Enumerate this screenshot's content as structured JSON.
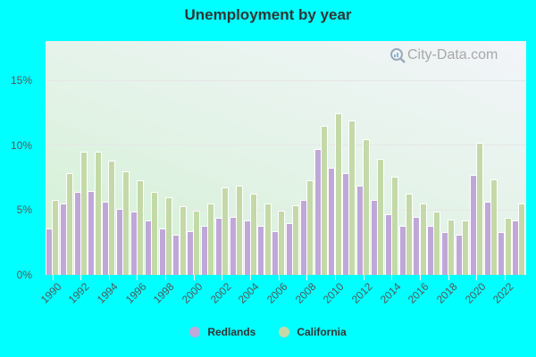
{
  "title": "Unemployment by year",
  "watermark": "City-Data.com",
  "colors": {
    "background": "#00ffff",
    "redlands": "#bfa8d8",
    "california": "#c4d9a8"
  },
  "legend": [
    {
      "label": "Redlands",
      "color": "#bfa8d8"
    },
    {
      "label": "California",
      "color": "#c4d9a8"
    }
  ],
  "y_ticks": [
    "0%",
    "5%",
    "10%",
    "15%"
  ],
  "x_tick_labels": [
    "1990",
    "1992",
    "1994",
    "1996",
    "1998",
    "2000",
    "2002",
    "2004",
    "2006",
    "2008",
    "2010",
    "2012",
    "2014",
    "2016",
    "2018",
    "2020",
    "2022"
  ],
  "chart_data": {
    "type": "bar",
    "title": "Unemployment by year",
    "xlabel": "",
    "ylabel": "",
    "ylim": [
      0,
      18
    ],
    "grid": true,
    "legend_position": "bottom",
    "categories": [
      "1990",
      "1991",
      "1992",
      "1993",
      "1994",
      "1995",
      "1996",
      "1997",
      "1998",
      "1999",
      "2000",
      "2001",
      "2002",
      "2003",
      "2004",
      "2005",
      "2006",
      "2007",
      "2008",
      "2009",
      "2010",
      "2011",
      "2012",
      "2013",
      "2014",
      "2015",
      "2016",
      "2017",
      "2018",
      "2019",
      "2020",
      "2021",
      "2022",
      "2023"
    ],
    "series": [
      {
        "name": "Redlands",
        "color": "#bfa8d8",
        "values": [
          3.5,
          5.4,
          6.3,
          6.4,
          5.6,
          5.0,
          4.8,
          4.1,
          3.5,
          3.0,
          3.3,
          3.7,
          4.3,
          4.4,
          4.1,
          3.7,
          3.3,
          3.9,
          5.7,
          9.6,
          8.2,
          7.8,
          6.8,
          5.7,
          4.6,
          3.7,
          4.4,
          3.7,
          3.2,
          3.0,
          7.6,
          5.6,
          3.2,
          4.1
        ]
      },
      {
        "name": "California",
        "color": "#c4d9a8",
        "values": [
          5.7,
          7.8,
          9.4,
          9.4,
          8.7,
          7.9,
          7.2,
          6.3,
          5.9,
          5.2,
          4.9,
          5.4,
          6.7,
          6.8,
          6.2,
          5.4,
          4.9,
          5.3,
          7.2,
          11.4,
          12.4,
          11.8,
          10.4,
          8.9,
          7.5,
          6.2,
          5.4,
          4.8,
          4.2,
          4.1,
          10.1,
          7.3,
          4.3,
          5.4
        ]
      }
    ]
  }
}
